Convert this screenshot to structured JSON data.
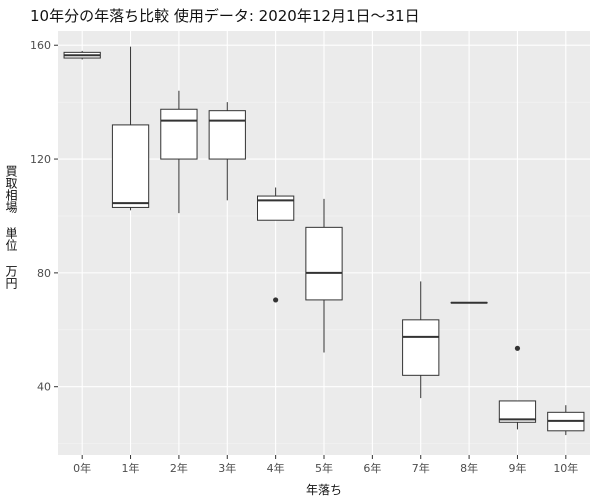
{
  "chart_data": {
    "type": "boxplot",
    "title": "10年分の年落ち比較 使用データ: 2020年12月1日～31日",
    "xlabel": "年落ち",
    "ylabel": "買取相場 単位 万円",
    "categories": [
      "0年",
      "1年",
      "2年",
      "3年",
      "4年",
      "5年",
      "6年",
      "7年",
      "8年",
      "9年",
      "10年"
    ],
    "yticks": [
      40,
      80,
      120,
      160
    ],
    "ylim": [
      16,
      165
    ],
    "grid": true,
    "boxes": [
      {
        "category": "0年",
        "min": 155,
        "q1": 155.5,
        "median": 156.5,
        "q3": 157.5,
        "max": 158,
        "outliers": []
      },
      {
        "category": "1年",
        "min": 102,
        "q1": 103,
        "median": 104.5,
        "q3": 132,
        "max": 159.5,
        "outliers": []
      },
      {
        "category": "2年",
        "min": 101,
        "q1": 120,
        "median": 133.5,
        "q3": 137.5,
        "max": 144,
        "outliers": []
      },
      {
        "category": "3年",
        "min": 105.5,
        "q1": 120,
        "median": 133.5,
        "q3": 137,
        "max": 140,
        "outliers": []
      },
      {
        "category": "4年",
        "min": 98.5,
        "q1": 98.5,
        "median": 105.5,
        "q3": 107,
        "max": 110,
        "outliers": [
          70.5
        ]
      },
      {
        "category": "5年",
        "min": 52,
        "q1": 70.5,
        "median": 80,
        "q3": 96,
        "max": 106,
        "outliers": []
      },
      {
        "category": "6年",
        "min": null,
        "q1": null,
        "median": null,
        "q3": null,
        "max": null,
        "outliers": []
      },
      {
        "category": "7年",
        "min": 36,
        "q1": 44,
        "median": 57.5,
        "q3": 63.5,
        "max": 77,
        "outliers": []
      },
      {
        "category": "8年",
        "min": 69.5,
        "q1": 69.5,
        "median": 69.5,
        "q3": 69.5,
        "max": 69.5,
        "outliers": []
      },
      {
        "category": "9年",
        "min": 25,
        "q1": 27.5,
        "median": 28.5,
        "q3": 35,
        "max": 35,
        "outliers": [
          53.5
        ]
      },
      {
        "category": "10年",
        "min": 23,
        "q1": 24.5,
        "median": 28,
        "q3": 31,
        "max": 33.5,
        "outliers": []
      }
    ]
  }
}
